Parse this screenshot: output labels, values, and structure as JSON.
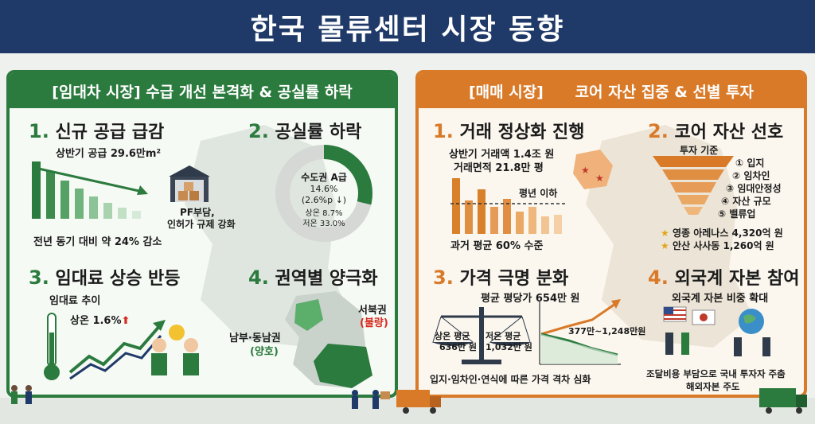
{
  "title": "한국 물류센터 시장 동향",
  "colors": {
    "navy": "#1f3a68",
    "green": "#2b7a3e",
    "orange": "#d97a28"
  },
  "left": {
    "title": "[임대차 시장] 수급 개선 본격화 & 공실률 하락",
    "s1": {
      "num": "1.",
      "title": "신규 공급 급감",
      "supply": "상반기 공급 29.6만m²",
      "pf": "PF부담,",
      "reg": "인허가 규제 강화",
      "yoy": "전년 동기 대비 약 24% 감소"
    },
    "s2": {
      "num": "2.",
      "title": "공실률 하락",
      "l1": "수도권 A급",
      "l2": "14.6%",
      "l3": "(2.6%p ↓)",
      "l4": "상온 8.7%",
      "l5": "저온 33.0%"
    },
    "s3": {
      "num": "3.",
      "title": "임대료 상승 반등",
      "trend": "임대료 추이",
      "up": "상온 1.6%"
    },
    "s4": {
      "num": "4.",
      "title": "권역별 양극화",
      "south1": "남부·동남권",
      "south2": "(양호)",
      "nw1": "서북권",
      "nw2": "(불량)"
    }
  },
  "right": {
    "title": "[매매 시장]      코어 자산 집중 & 선별 투자",
    "s1": {
      "num": "1.",
      "title": "거래 정상화 진행",
      "amount": "상반기 거래액 1.4조 원",
      "area": "거래면적 21.8만 평",
      "below": "평년 이하",
      "avg": "과거 평균 60% 수준"
    },
    "s2": {
      "num": "2.",
      "title": "코어 자산 선호",
      "criteria": "투자 기준",
      "items": [
        "① 입지",
        "② 임차인",
        "③ 임대안정성",
        "④ 자산 규모",
        "⑤ 밸류업"
      ],
      "deal1": "영종 아레나스 4,320억 원",
      "deal2": "안산 사사동 1,260억 원"
    },
    "s3": {
      "num": "3.",
      "title": "가격 극명 분화",
      "avg": "평균 평당가 654만 원",
      "a1": "상온 평균",
      "a2": "636만 원",
      "b1": "저온 평균",
      "b2": "1,032만 원",
      "range": "377만~1,248만원",
      "cap": "입지·임차인·연식에 따른 가격 격차 심화"
    },
    "s4": {
      "num": "4.",
      "title": "외국계 자본 참여",
      "expand": "외국계 자본 비중 확대",
      "c1": "조달비용 부담으로 국내 투자자 주춤",
      "c2": "해외자본 주도"
    }
  }
}
